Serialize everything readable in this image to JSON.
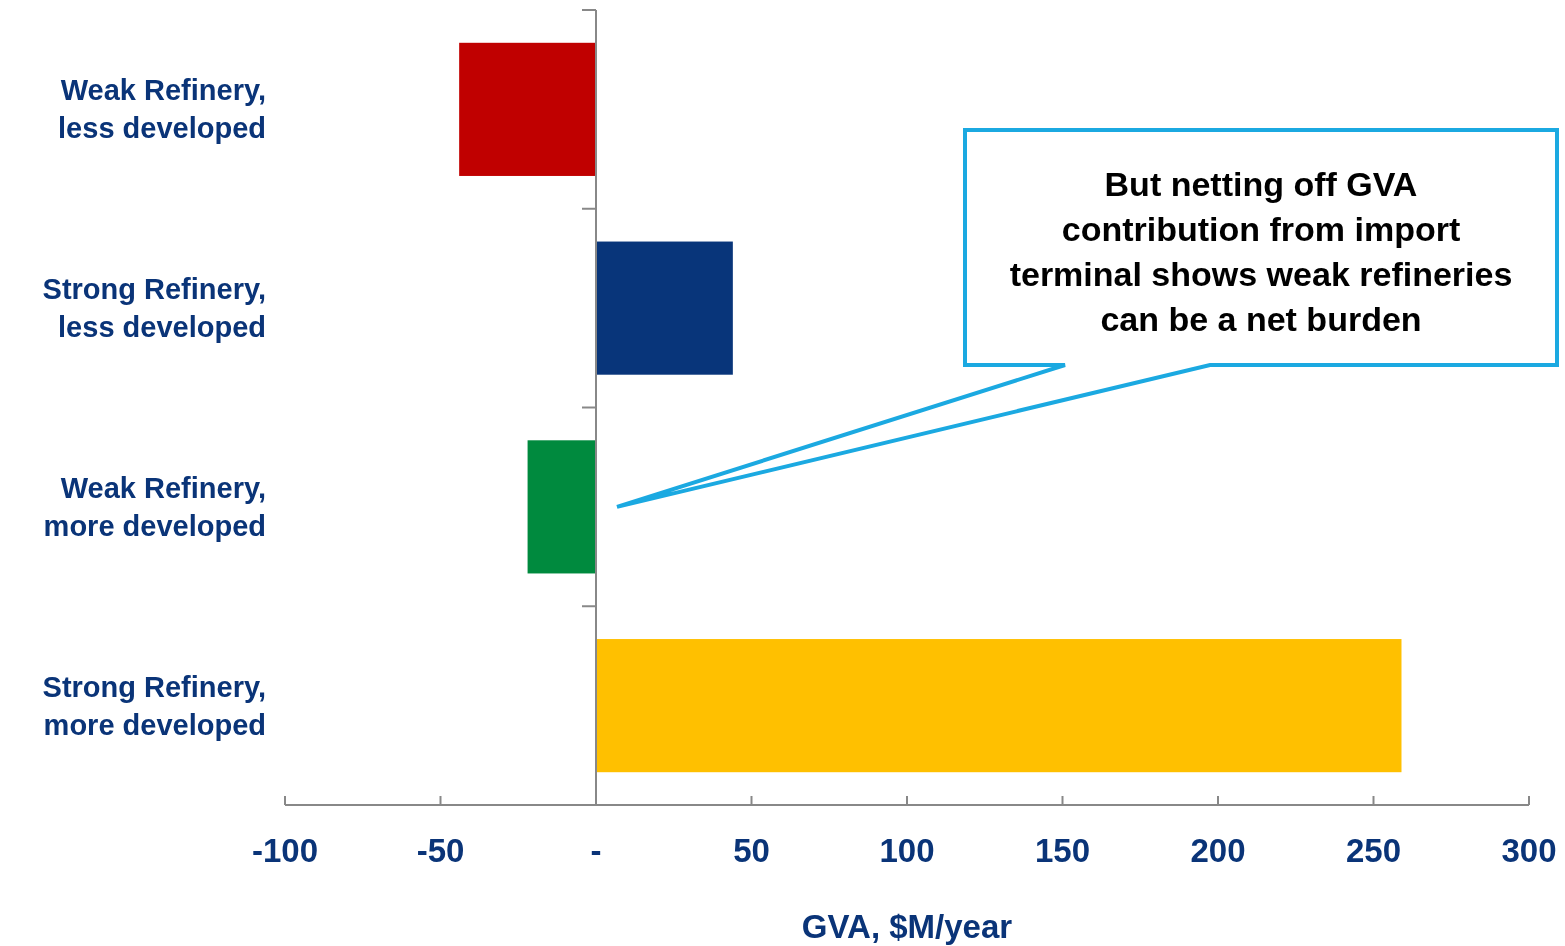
{
  "chart_data": {
    "type": "bar",
    "orientation": "horizontal",
    "xlabel": "GVA, $M/year",
    "categories": [
      "Weak Refinery, less developed",
      "Strong Refinery, less developed",
      "Weak Refinery, more developed",
      "Strong Refinery, more developed"
    ],
    "values": [
      -44,
      44,
      -22,
      259
    ],
    "colors": [
      "#c00000",
      "#08357a",
      "#008a3e",
      "#ffc000"
    ],
    "xlim": [
      -100,
      300
    ],
    "xticks": [
      -100,
      -50,
      {
        "value": 0,
        "label": "-"
      },
      50,
      100,
      150,
      200,
      250,
      300
    ],
    "annotations": [
      "But netting off GVA contribution from import terminal shows weak refineries can be a net burden"
    ]
  }
}
